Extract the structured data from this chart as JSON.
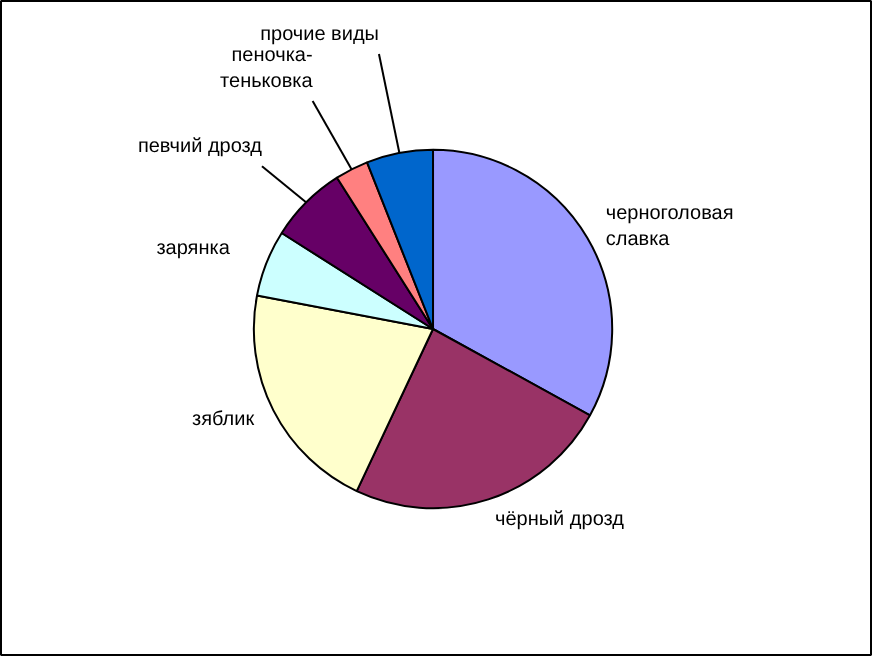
{
  "chart_data": {
    "type": "pie",
    "categories": [
      "черноголовая славка",
      "чёрный дрозд",
      "зяблик",
      "зарянка",
      "певчий дрозд",
      "пеночка-теньковка",
      "прочие виды"
    ],
    "values": [
      33,
      24,
      21,
      6,
      7,
      3,
      6
    ],
    "colors": [
      "#9999ff",
      "#993366",
      "#ffffcc",
      "#ccffff",
      "#660066",
      "#ff8080",
      "#0066cc"
    ]
  }
}
